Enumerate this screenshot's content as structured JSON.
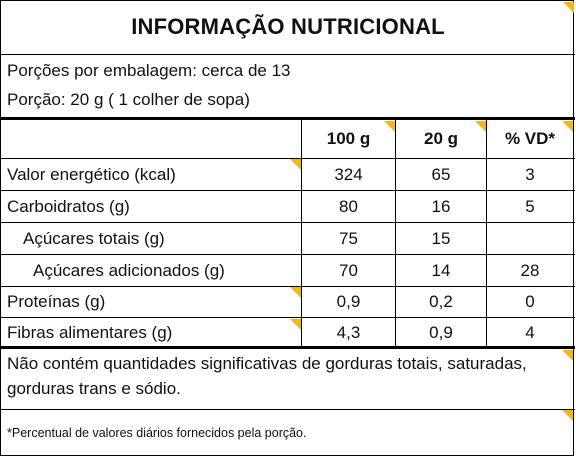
{
  "title": "INFORMAÇÃO NUTRICIONAL",
  "servings_per_package": "Porções por embalagem: cerca de 13",
  "serving_size": "Porção: 20 g ( 1 colher de sopa)",
  "columns": [
    "100 g",
    "20 g",
    "% VD*"
  ],
  "rows": [
    {
      "name": "Valor energético (kcal)",
      "v100": "324",
      "v20": "65",
      "vd": "3"
    },
    {
      "name": "Carboidratos (g)",
      "v100": "80",
      "v20": "16",
      "vd": "5"
    },
    {
      "name": "Açúcares totais (g)",
      "v100": "75",
      "v20": "15",
      "vd": ""
    },
    {
      "name": "Açúcares adicionados (g)",
      "v100": "70",
      "v20": "14",
      "vd": "28"
    },
    {
      "name": "Proteínas (g)",
      "v100": "0,9",
      "v20": "0,2",
      "vd": "0"
    },
    {
      "name": "Fibras alimentares (g)",
      "v100": "4,3",
      "v20": "0,9",
      "vd": "4"
    }
  ],
  "note_insignificant": "Não contém quantidades significativas de gorduras totais, saturadas, gorduras trans  e sódio.",
  "note_footnote": "*Percentual de valores diários fornecidos pela porção.",
  "colors": {
    "accent": "#f5b418",
    "border": "#000000"
  }
}
